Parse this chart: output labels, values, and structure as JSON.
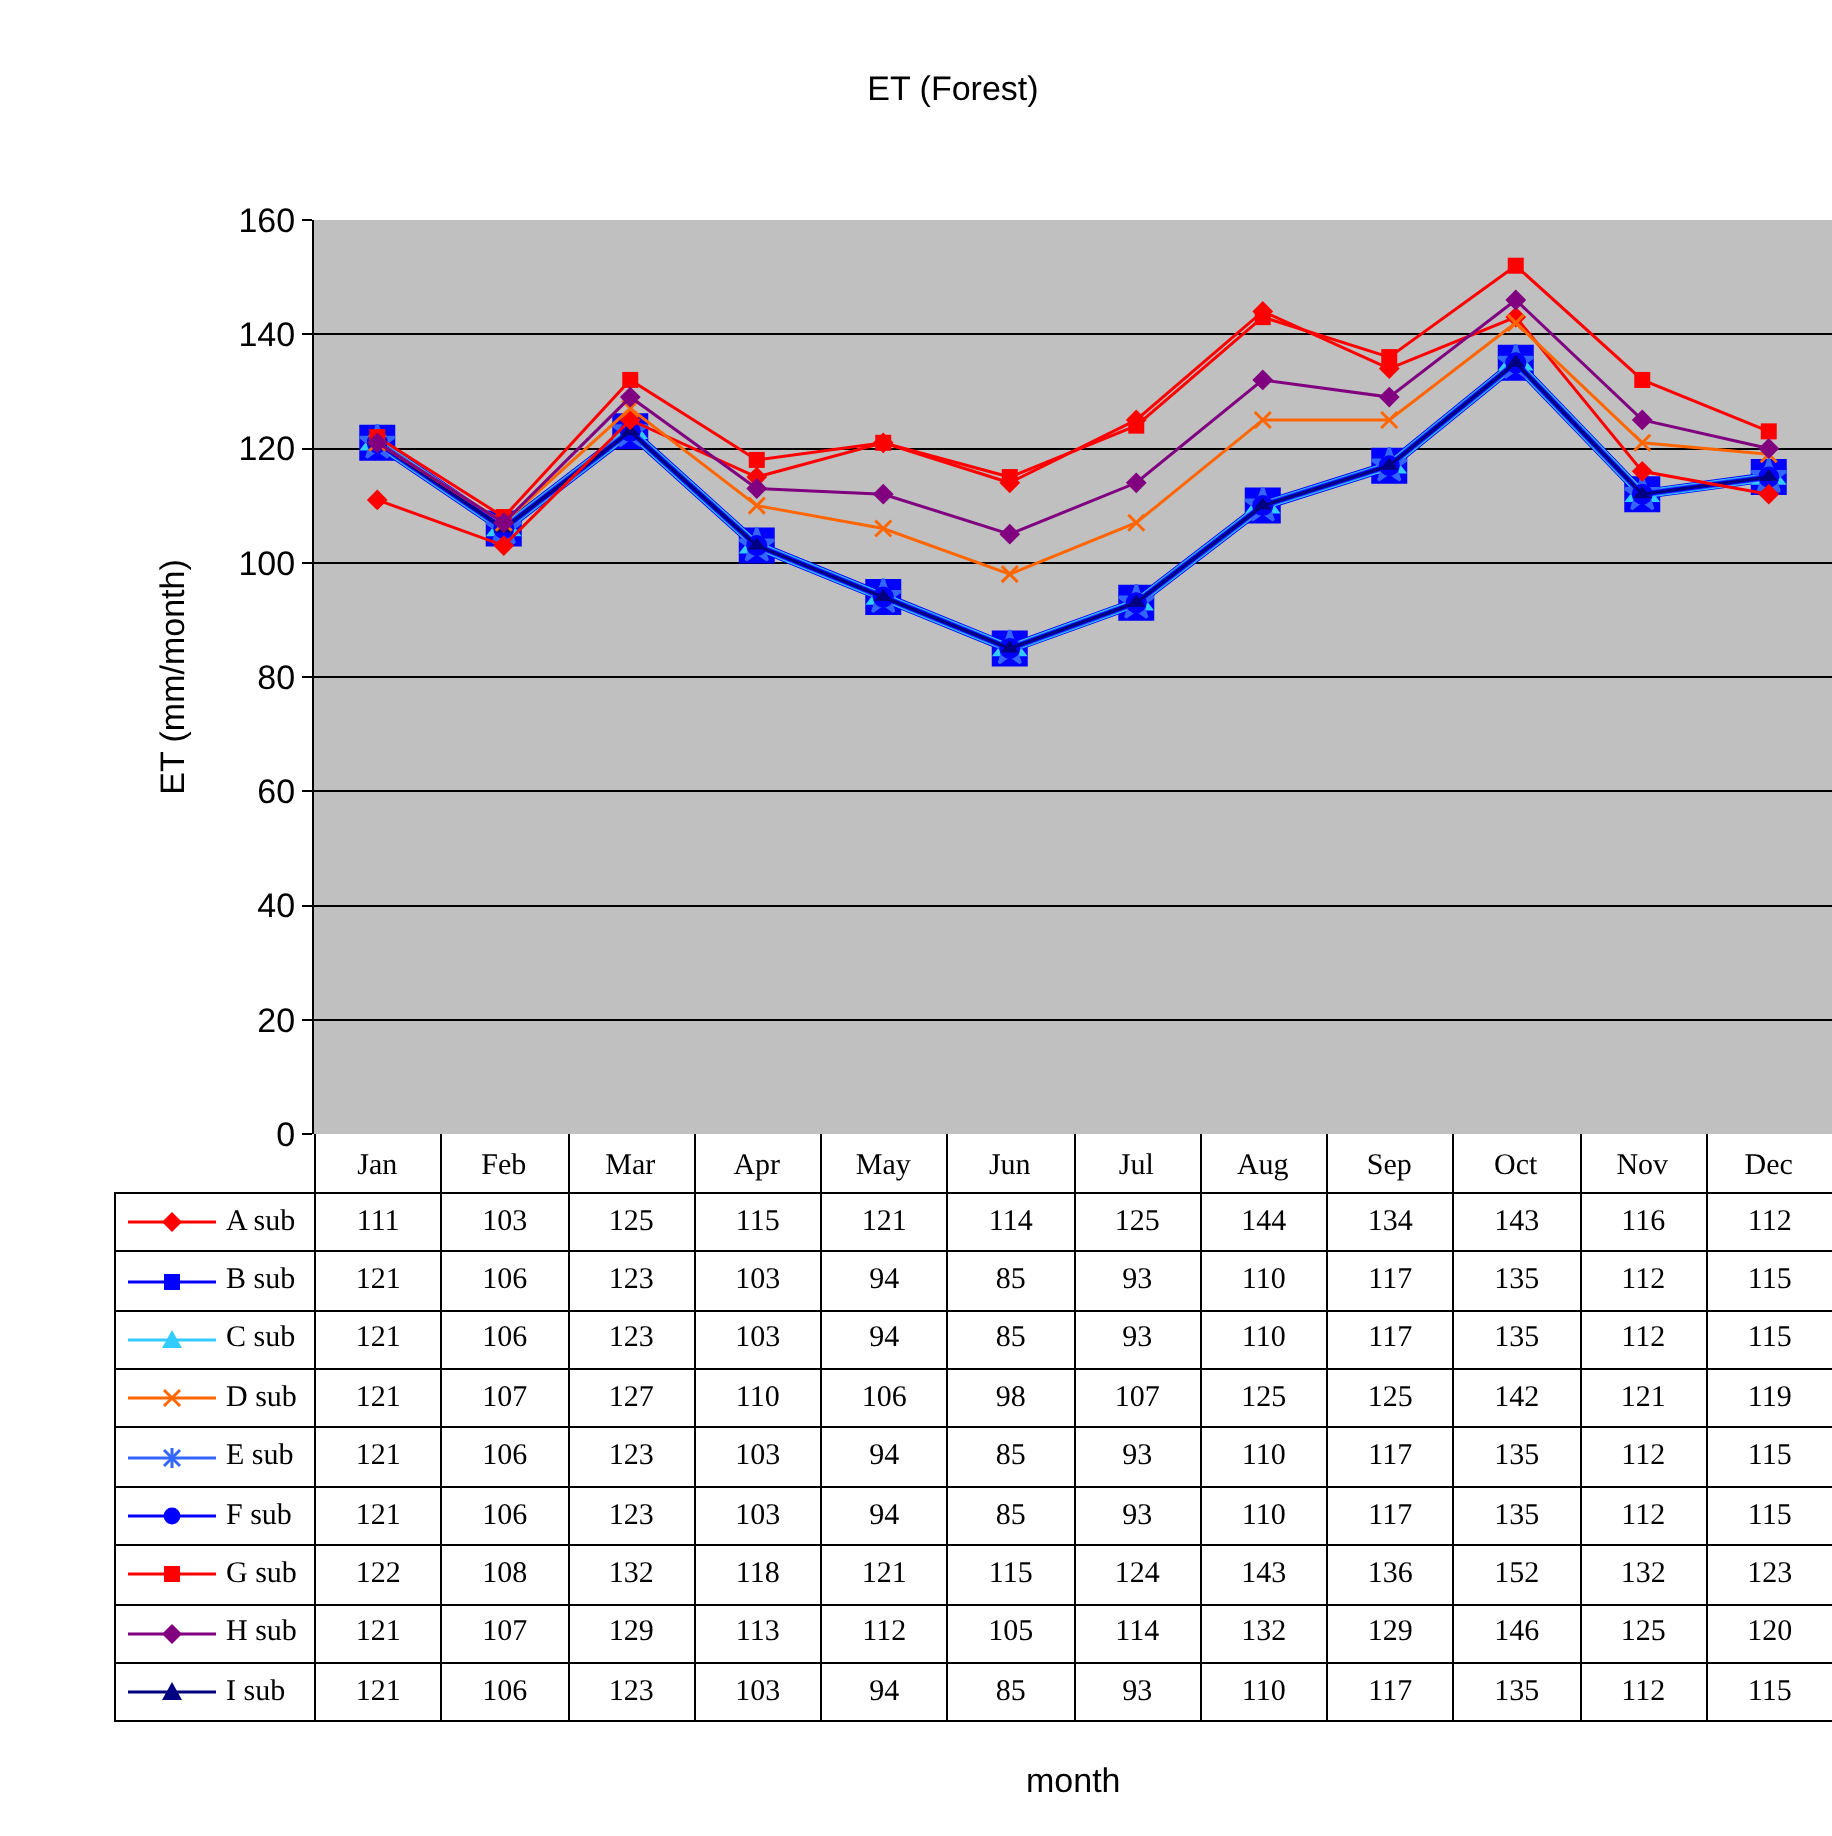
{
  "chart_data": {
    "type": "line",
    "title": "ET (Forest)",
    "annotations": [
      "month"
    ],
    "ylabel": "ET (mm/month)",
    "categories": [
      "Jan",
      "Feb",
      "Mar",
      "Apr",
      "May",
      "Jun",
      "Jul",
      "Aug",
      "Sep",
      "Oct",
      "Nov",
      "Dec"
    ],
    "ylim": [
      0,
      160
    ],
    "yticks": [
      0,
      20,
      40,
      60,
      80,
      100,
      120,
      140,
      160
    ],
    "grid": "y",
    "legend": "bottom left",
    "data_labels": true,
    "line_style": "solid",
    "series": [
      {
        "name": "A sub",
        "color": "#ff0000",
        "marker": "diamond",
        "values": [
          111,
          103,
          125,
          115,
          121,
          114,
          125,
          144,
          134,
          143,
          116,
          112
        ]
      },
      {
        "name": "B sub",
        "color": "#0000ff",
        "marker": "square",
        "values": [
          121,
          106,
          123,
          103,
          94,
          85,
          93,
          110,
          117,
          135,
          112,
          115
        ]
      },
      {
        "name": "C sub",
        "color": "#33ccff",
        "marker": "triangle",
        "values": [
          121,
          106,
          123,
          103,
          94,
          85,
          93,
          110,
          117,
          135,
          112,
          115
        ]
      },
      {
        "name": "D sub",
        "color": "#ff6600",
        "marker": "cross",
        "values": [
          121,
          107,
          127,
          110,
          106,
          98,
          107,
          125,
          125,
          142,
          121,
          119
        ]
      },
      {
        "name": "E sub",
        "color": "#3366ff",
        "marker": "star",
        "values": [
          121,
          106,
          123,
          103,
          94,
          85,
          93,
          110,
          117,
          135,
          112,
          115
        ]
      },
      {
        "name": "F sub",
        "color": "#0000ff",
        "marker": "circle",
        "values": [
          121,
          106,
          123,
          103,
          94,
          85,
          93,
          110,
          117,
          135,
          112,
          115
        ]
      },
      {
        "name": "G sub",
        "color": "#ff0000",
        "marker": "square",
        "values": [
          122,
          108,
          132,
          118,
          121,
          115,
          124,
          143,
          136,
          152,
          132,
          123
        ]
      },
      {
        "name": "H sub",
        "color": "#800080",
        "marker": "diamond",
        "values": [
          121,
          107,
          129,
          113,
          112,
          105,
          114,
          132,
          129,
          146,
          125,
          120
        ]
      },
      {
        "name": "I sub",
        "color": "#000080",
        "marker": "triangle",
        "values": [
          121,
          106,
          123,
          103,
          94,
          85,
          93,
          110,
          117,
          135,
          112,
          115
        ]
      }
    ]
  }
}
